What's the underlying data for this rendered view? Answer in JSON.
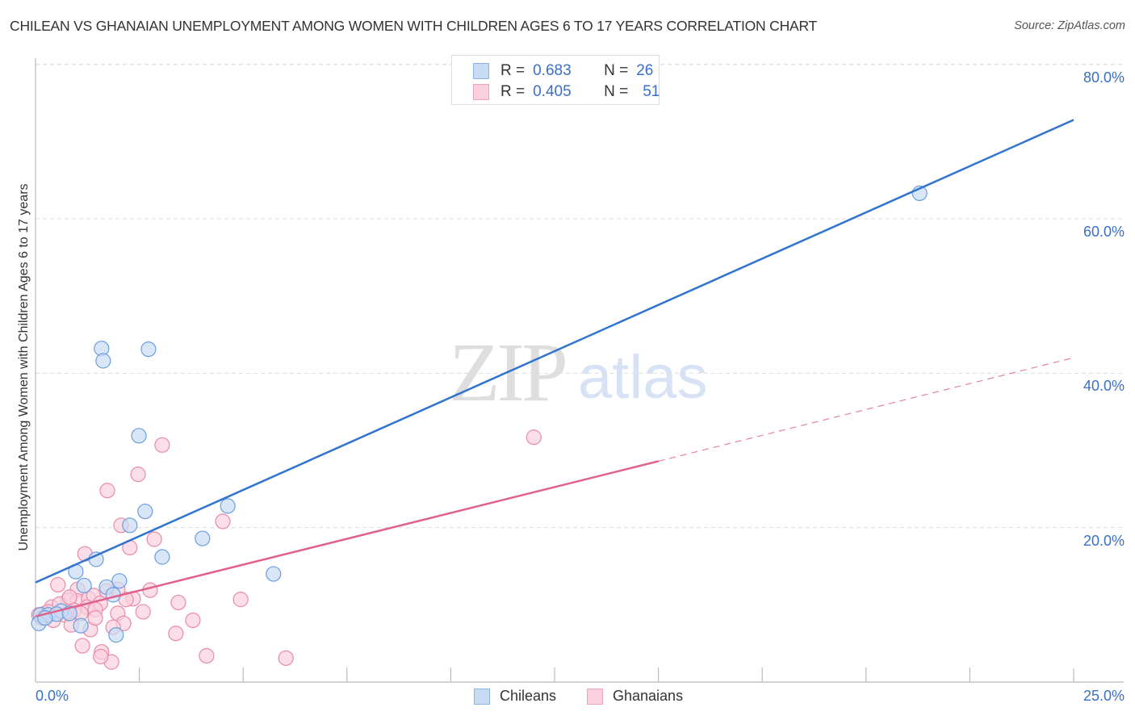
{
  "header": {
    "title": "CHILEAN VS GHANAIAN UNEMPLOYMENT AMONG WOMEN WITH CHILDREN AGES 6 TO 17 YEARS CORRELATION CHART",
    "source": "Source: ZipAtlas.com"
  },
  "watermark": {
    "zip": "ZIP",
    "atlas": "atlas"
  },
  "legend": {
    "rows": [
      {
        "r_label": "R =",
        "r_value": "0.683",
        "n_label": "N =",
        "n_value": "26",
        "color": "#a8c8f0"
      },
      {
        "r_label": "R =",
        "r_value": "0.405",
        "n_label": "N =",
        "n_value": "51",
        "color": "#f5b8cb"
      }
    ]
  },
  "axes": {
    "y_ticks": [
      "80.0%",
      "60.0%",
      "40.0%",
      "20.0%"
    ],
    "x_min_label": "0.0%",
    "x_max_label": "25.0%",
    "y_label": "Unemployment Among Women with Children Ages 6 to 17 years"
  },
  "bottom_legend": [
    {
      "label": "Chileans",
      "color": "#a8c8f0"
    },
    {
      "label": "Ghanaians",
      "color": "#f5b8cb"
    }
  ],
  "colors": {
    "chileans_fill": "#c7dbf5",
    "chileans_stroke": "#6a9ee0",
    "chileans_line": "#2f74d0",
    "ghanaians_fill": "#fad0dd",
    "ghanaians_stroke": "#e98aa8",
    "ghanaians_line": "#e0628a",
    "tick_text": "#3a6fc8",
    "grid": "#dddddd"
  },
  "chart_data": {
    "type": "scatter",
    "title": "CHILEAN VS GHANAIAN UNEMPLOYMENT AMONG WOMEN WITH CHILDREN AGES 6 TO 17 YEARS CORRELATION CHART",
    "xlabel": "",
    "ylabel": "Unemployment Among Women with Children Ages 6 to 17 years",
    "xlim": [
      0,
      25
    ],
    "ylim": [
      0,
      82
    ],
    "x_ticks": [
      0,
      25
    ],
    "y_ticks": [
      20,
      40,
      60,
      80
    ],
    "grid": "horizontal dashed",
    "legend_position": "top-center",
    "series": [
      {
        "name": "Chileans",
        "R": 0.683,
        "N": 26,
        "trend": {
          "x": [
            0,
            25
          ],
          "y": [
            12.9,
            72.8
          ]
        },
        "points": [
          [
            21.29,
            63.3
          ],
          [
            1.59,
            43.2
          ],
          [
            1.63,
            41.6
          ],
          [
            2.72,
            43.1
          ],
          [
            2.49,
            31.9
          ],
          [
            2.64,
            22.1
          ],
          [
            4.63,
            22.8
          ],
          [
            2.27,
            20.3
          ],
          [
            4.02,
            18.6
          ],
          [
            3.05,
            16.2
          ],
          [
            1.46,
            15.9
          ],
          [
            5.73,
            14.0
          ],
          [
            0.97,
            14.3
          ],
          [
            2.02,
            13.1
          ],
          [
            1.71,
            12.3
          ],
          [
            1.87,
            11.3
          ],
          [
            1.17,
            12.5
          ],
          [
            1.09,
            7.3
          ],
          [
            1.94,
            6.1
          ],
          [
            0.12,
            8.7
          ],
          [
            0.31,
            8.7
          ],
          [
            0.62,
            9.2
          ],
          [
            0.51,
            8.8
          ],
          [
            0.08,
            7.6
          ],
          [
            0.82,
            8.9
          ],
          [
            0.23,
            8.3
          ]
        ]
      },
      {
        "name": "Ghanaians",
        "R": 0.405,
        "N": 51,
        "trend": {
          "x": [
            0,
            15
          ],
          "y": [
            8.5,
            28.6
          ],
          "dashed_extension": {
            "x": [
              15,
              25
            ],
            "y": [
              28.6,
              42.0
            ]
          }
        },
        "points": [
          [
            12.0,
            31.7
          ],
          [
            3.05,
            30.7
          ],
          [
            2.47,
            26.9
          ],
          [
            1.73,
            24.8
          ],
          [
            4.51,
            20.8
          ],
          [
            2.06,
            20.3
          ],
          [
            2.86,
            18.5
          ],
          [
            2.27,
            17.4
          ],
          [
            1.19,
            16.6
          ],
          [
            2.76,
            11.9
          ],
          [
            2.35,
            10.8
          ],
          [
            2.18,
            10.7
          ],
          [
            3.44,
            10.3
          ],
          [
            4.94,
            10.7
          ],
          [
            2.59,
            9.1
          ],
          [
            1.98,
            8.9
          ],
          [
            3.79,
            8.0
          ],
          [
            2.12,
            7.6
          ],
          [
            1.87,
            7.1
          ],
          [
            3.38,
            6.3
          ],
          [
            1.59,
            3.9
          ],
          [
            1.83,
            2.6
          ],
          [
            4.12,
            3.4
          ],
          [
            6.03,
            3.1
          ],
          [
            1.57,
            3.3
          ],
          [
            1.13,
            4.7
          ],
          [
            1.01,
            12.0
          ],
          [
            0.54,
            12.6
          ],
          [
            0.78,
            10.6
          ],
          [
            1.01,
            10.5
          ],
          [
            1.28,
            10.8
          ],
          [
            1.4,
            11.2
          ],
          [
            1.56,
            10.2
          ],
          [
            1.24,
            9.7
          ],
          [
            1.44,
            9.4
          ],
          [
            0.93,
            9.3
          ],
          [
            0.7,
            8.7
          ],
          [
            0.39,
            9.7
          ],
          [
            0.23,
            8.9
          ],
          [
            0.08,
            8.7
          ],
          [
            0.43,
            8.0
          ],
          [
            0.86,
            7.4
          ],
          [
            0.58,
            10.1
          ],
          [
            1.71,
            11.8
          ],
          [
            1.98,
            12.0
          ],
          [
            1.09,
            8.9
          ],
          [
            0.31,
            9.1
          ],
          [
            0.16,
            8.3
          ],
          [
            1.32,
            6.8
          ],
          [
            0.82,
            11.0
          ],
          [
            1.44,
            8.3
          ]
        ]
      }
    ]
  }
}
